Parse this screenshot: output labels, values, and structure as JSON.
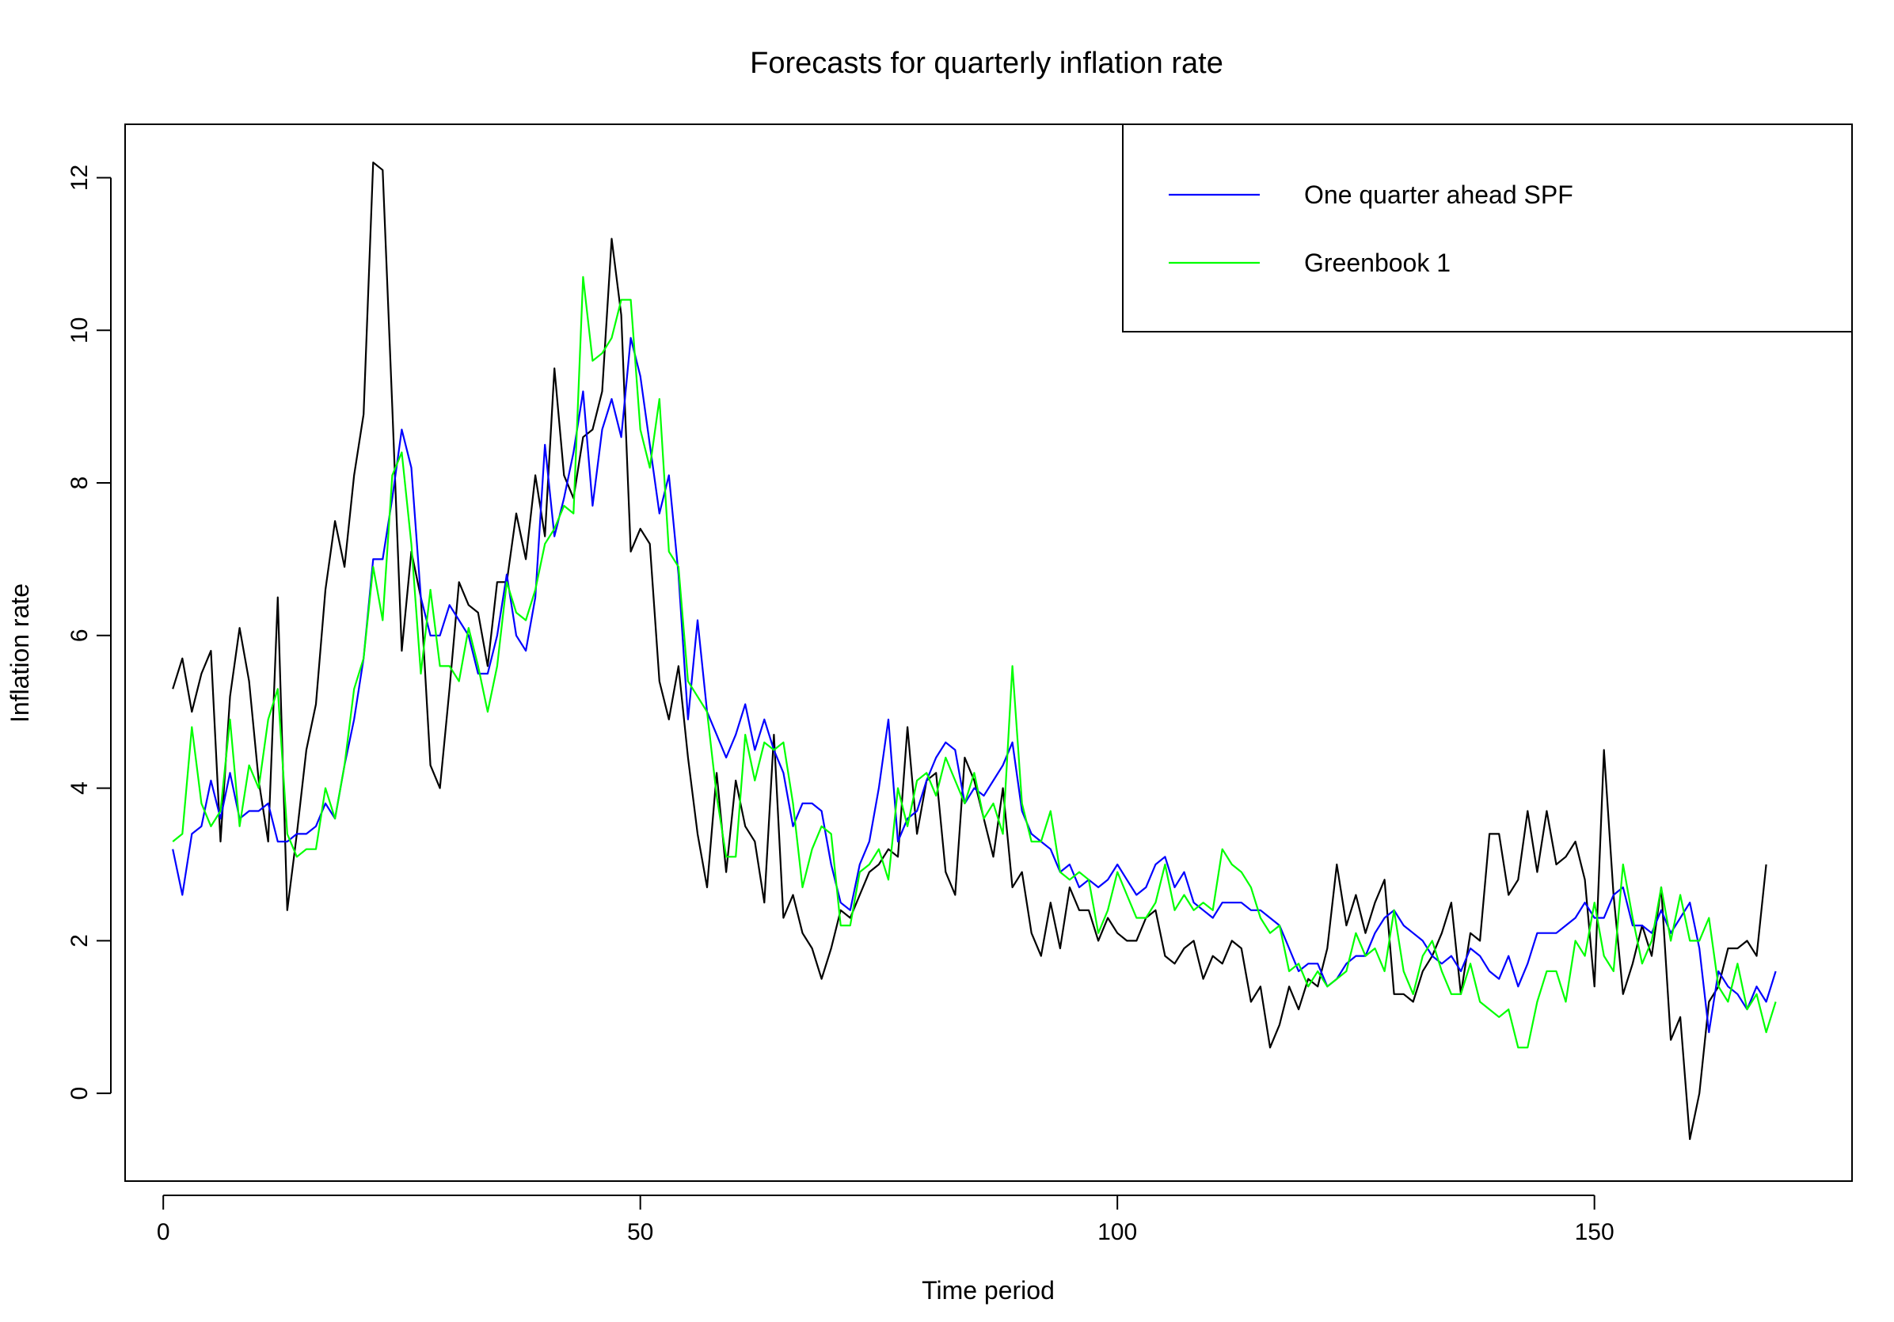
{
  "chart_data": {
    "type": "line",
    "title": "Forecasts for quarterly inflation rate",
    "xlabel": "Time period",
    "ylabel": "Inflation rate",
    "xlim": [
      -4,
      177
    ],
    "ylim": [
      -1.15,
      12.7
    ],
    "xticks": [
      0,
      50,
      100,
      150
    ],
    "yticks": [
      0,
      2,
      4,
      6,
      8,
      10,
      12
    ],
    "grid": false,
    "legend_position": "top-right",
    "series": [
      {
        "color": "#000000",
        "values": [
          5.3,
          5.7,
          5.0,
          5.5,
          5.8,
          3.3,
          5.2,
          6.1,
          5.4,
          4.1,
          3.3,
          6.5,
          2.4,
          3.4,
          4.5,
          5.1,
          6.6,
          7.5,
          6.9,
          8.1,
          8.9,
          12.2,
          12.1,
          9.0,
          5.8,
          7.1,
          6.5,
          4.3,
          4.0,
          5.3,
          6.7,
          6.4,
          6.3,
          5.6,
          6.7,
          6.7,
          7.6,
          7.0,
          8.1,
          7.3,
          9.5,
          8.1,
          7.8,
          8.6,
          8.7,
          9.2,
          11.2,
          10.2,
          7.1,
          7.4,
          7.2,
          5.4,
          4.9,
          5.6,
          4.4,
          3.4,
          2.7,
          4.2,
          2.9,
          4.1,
          3.5,
          3.3,
          2.5,
          4.7,
          2.3,
          2.6,
          2.1,
          1.9,
          1.5,
          1.9,
          2.4,
          2.3,
          2.6,
          2.9,
          3.0,
          3.2,
          3.1,
          4.8,
          3.4,
          4.1,
          4.2,
          2.9,
          2.6,
          4.4,
          4.1,
          3.6,
          3.1,
          4.0,
          2.7,
          2.9,
          2.1,
          1.8,
          2.5,
          1.9,
          2.7,
          2.4,
          2.4,
          2.0,
          2.3,
          2.1,
          2.0,
          2.0,
          2.3,
          2.4,
          1.8,
          1.7,
          1.9,
          2.0,
          1.5,
          1.8,
          1.7,
          2.0,
          1.9,
          1.2,
          1.4,
          0.6,
          0.9,
          1.4,
          1.1,
          1.5,
          1.4,
          1.9,
          3.0,
          2.2,
          2.6,
          2.1,
          2.5,
          2.8,
          1.3,
          1.3,
          1.2,
          1.6,
          1.8,
          2.1,
          2.5,
          1.3,
          2.1,
          2.0,
          3.4,
          3.4,
          2.6,
          2.8,
          3.7,
          2.9,
          3.7,
          3.0,
          3.1,
          3.3,
          2.8,
          1.4,
          4.5,
          2.6,
          1.3,
          1.7,
          2.2,
          1.8,
          2.7,
          0.7,
          1.0,
          -0.6,
          0.0,
          1.2,
          1.4,
          1.9,
          1.9,
          2.0,
          1.8,
          3.0
        ]
      },
      {
        "name": "One quarter ahead SPF",
        "color": "#0000ff",
        "values": [
          3.2,
          2.6,
          3.4,
          3.5,
          4.1,
          3.6,
          4.2,
          3.6,
          3.7,
          3.7,
          3.8,
          3.3,
          3.3,
          3.4,
          3.4,
          3.5,
          3.8,
          3.6,
          4.3,
          4.9,
          5.7,
          7.0,
          7.0,
          7.8,
          8.7,
          8.2,
          6.5,
          6.0,
          6.0,
          6.4,
          6.2,
          6.0,
          5.5,
          5.5,
          6.0,
          6.8,
          6.0,
          5.8,
          6.5,
          8.5,
          7.3,
          7.8,
          8.4,
          9.2,
          7.7,
          8.7,
          9.1,
          8.6,
          9.9,
          9.4,
          8.5,
          7.6,
          8.1,
          6.8,
          4.9,
          6.2,
          5.0,
          4.7,
          4.4,
          4.7,
          5.1,
          4.5,
          4.9,
          4.5,
          4.2,
          3.5,
          3.8,
          3.8,
          3.7,
          3.0,
          2.5,
          2.4,
          3.0,
          3.3,
          4.0,
          4.9,
          3.3,
          3.6,
          3.7,
          4.1,
          4.4,
          4.6,
          4.5,
          3.8,
          4.0,
          3.9,
          4.1,
          4.3,
          4.6,
          3.7,
          3.4,
          3.3,
          3.2,
          2.9,
          3.0,
          2.7,
          2.8,
          2.7,
          2.8,
          3.0,
          2.8,
          2.6,
          2.7,
          3.0,
          3.1,
          2.7,
          2.9,
          2.5,
          2.4,
          2.3,
          2.5,
          2.5,
          2.5,
          2.4,
          2.4,
          2.3,
          2.2,
          1.9,
          1.6,
          1.7,
          1.7,
          1.4,
          1.5,
          1.7,
          1.8,
          1.8,
          2.1,
          2.3,
          2.4,
          2.2,
          2.1,
          2.0,
          1.8,
          1.7,
          1.8,
          1.6,
          1.9,
          1.8,
          1.6,
          1.5,
          1.8,
          1.4,
          1.7,
          2.1,
          2.1,
          2.1,
          2.2,
          2.3,
          2.5,
          2.3,
          2.3,
          2.6,
          2.7,
          2.2,
          2.2,
          2.1,
          2.4,
          2.1,
          2.3,
          2.5,
          1.9,
          0.8,
          1.6,
          1.4,
          1.3,
          1.1,
          1.4,
          1.2,
          1.6
        ]
      },
      {
        "name": "Greenbook 1",
        "color": "#00ff00",
        "values": [
          3.3,
          3.4,
          4.8,
          3.8,
          3.5,
          3.7,
          4.9,
          3.5,
          4.3,
          4.0,
          4.9,
          5.3,
          3.4,
          3.1,
          3.2,
          3.2,
          4.0,
          3.6,
          4.3,
          5.3,
          5.7,
          6.9,
          6.2,
          8.1,
          8.4,
          7.2,
          5.5,
          6.6,
          5.6,
          5.6,
          5.4,
          6.1,
          5.6,
          5.0,
          5.6,
          6.7,
          6.3,
          6.2,
          6.6,
          7.2,
          7.4,
          7.7,
          7.6,
          10.7,
          9.6,
          9.7,
          9.9,
          10.4,
          10.4,
          8.7,
          8.2,
          9.1,
          7.1,
          6.9,
          5.4,
          5.2,
          5.0,
          3.9,
          3.1,
          3.1,
          4.7,
          4.1,
          4.6,
          4.5,
          4.6,
          3.8,
          2.7,
          3.2,
          3.5,
          3.4,
          2.2,
          2.2,
          2.9,
          3.0,
          3.2,
          2.8,
          4.0,
          3.5,
          4.1,
          4.2,
          3.9,
          4.4,
          4.1,
          3.8,
          4.2,
          3.6,
          3.8,
          3.4,
          5.6,
          3.8,
          3.3,
          3.3,
          3.7,
          2.9,
          2.8,
          2.9,
          2.8,
          2.1,
          2.4,
          2.9,
          2.6,
          2.3,
          2.3,
          2.5,
          3.0,
          2.4,
          2.6,
          2.4,
          2.5,
          2.4,
          3.2,
          3.0,
          2.9,
          2.7,
          2.3,
          2.1,
          2.2,
          1.6,
          1.7,
          1.4,
          1.6,
          1.4,
          1.5,
          1.6,
          2.1,
          1.8,
          1.9,
          1.6,
          2.4,
          1.6,
          1.3,
          1.8,
          2.0,
          1.6,
          1.3,
          1.3,
          1.7,
          1.2,
          1.1,
          1.0,
          1.1,
          0.6,
          0.6,
          1.2,
          1.6,
          1.6,
          1.2,
          2.0,
          1.8,
          2.5,
          1.8,
          1.6,
          3.0,
          2.3,
          1.7,
          2.0,
          2.7,
          2.0,
          2.6,
          2.0,
          2.0,
          2.3,
          1.4,
          1.2,
          1.7,
          1.1,
          1.3,
          0.8,
          1.2
        ]
      }
    ]
  }
}
